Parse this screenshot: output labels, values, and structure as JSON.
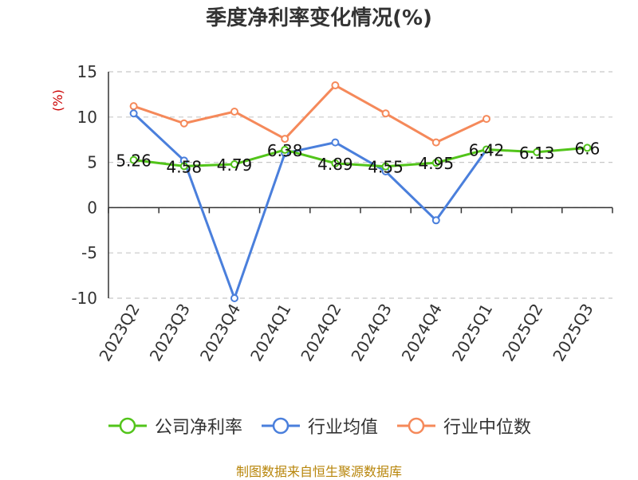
{
  "chart_data": {
    "type": "line",
    "title": "季度净利率变化情况(%)",
    "ylabel": "(%)",
    "xlabel": "",
    "ylim": [
      -10,
      15
    ],
    "yticks": [
      15,
      10,
      5,
      0,
      -5,
      -10
    ],
    "categories": [
      "2023Q2",
      "2023Q3",
      "2023Q4",
      "2024Q1",
      "2024Q2",
      "2024Q3",
      "2024Q4",
      "2025Q1",
      "2025Q2",
      "2025Q3"
    ],
    "grid": true,
    "legend_position": "bottom",
    "series": [
      {
        "name": "公司净利率",
        "color": "#52c41a",
        "values": [
          5.26,
          4.58,
          4.79,
          6.38,
          4.89,
          4.55,
          4.95,
          6.42,
          6.13,
          6.6
        ],
        "labels": [
          "5.26",
          "4.58",
          "4.79",
          "6.38",
          "4.89",
          "4.55",
          "4.95",
          "6.42",
          "6.13",
          "6.6"
        ]
      },
      {
        "name": "行业均值",
        "color": "#4a7fdc",
        "values": [
          10.4,
          5.2,
          -10.0,
          6.0,
          7.2,
          4.0,
          -1.4,
          6.4,
          null,
          null
        ]
      },
      {
        "name": "行业中位数",
        "color": "#f5895a",
        "values": [
          11.2,
          9.3,
          10.6,
          7.6,
          13.5,
          10.4,
          7.2,
          9.8,
          null,
          null
        ]
      }
    ]
  },
  "footer": "制图数据来自恒生聚源数据库"
}
